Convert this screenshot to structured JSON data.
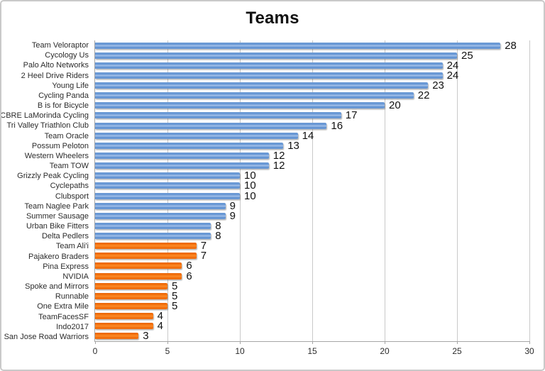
{
  "chart": {
    "title": "Teams"
  },
  "chart_data": {
    "type": "bar",
    "orientation": "horizontal",
    "title": "Teams",
    "xlabel": "",
    "ylabel": "",
    "xlim": [
      0,
      30
    ],
    "xticks": [
      0,
      5,
      10,
      15,
      20,
      25,
      30
    ],
    "grid": "vertical",
    "legend": "none",
    "value_labels": "shown at bar ends",
    "categories": [
      "Team Veloraptor",
      "Cycology Us",
      "Palo Alto Networks",
      "2 Heel Drive Riders",
      "Young Life",
      "Cycling Panda",
      "B is for Bicycle",
      "CBRE LaMorinda Cycling",
      "Tri Valley Triathlon Club",
      "Team Oracle",
      "Possum Peloton",
      "Western Wheelers",
      "Team TOW",
      "Grizzly Peak Cycling",
      "Cyclepaths",
      "Clubsport",
      "Team Naglee Park",
      "Summer Sausage",
      "Urban Bike Fitters",
      "Delta Pedlers",
      "Team Ali'i",
      "Pajakero Braders",
      "Pina Express",
      "NVIDIA",
      "Spoke and Mirrors",
      "Runnable",
      "One Extra Mile",
      "TeamFacesSF",
      "Indo2017",
      "San Jose Road Warriors"
    ],
    "values": [
      28,
      25,
      24,
      24,
      23,
      22,
      20,
      17,
      16,
      14,
      13,
      12,
      12,
      10,
      10,
      10,
      9,
      9,
      8,
      8,
      7,
      7,
      6,
      6,
      5,
      5,
      5,
      4,
      4,
      3
    ],
    "bar_colors": [
      "blue",
      "blue",
      "blue",
      "blue",
      "blue",
      "blue",
      "blue",
      "blue",
      "blue",
      "blue",
      "blue",
      "blue",
      "blue",
      "blue",
      "blue",
      "blue",
      "blue",
      "blue",
      "blue",
      "blue",
      "orange",
      "orange",
      "orange",
      "orange",
      "orange",
      "orange",
      "orange",
      "orange",
      "orange",
      "orange"
    ],
    "colors": {
      "blue": "#6b9ad6",
      "blue_highlight": "#a9c5ec",
      "orange": "#f5730d",
      "orange_highlight": "#fb8b2b",
      "gridline": "#c9c9c9",
      "axis": "#a6a6a6",
      "text": "#2b2b2b"
    }
  }
}
